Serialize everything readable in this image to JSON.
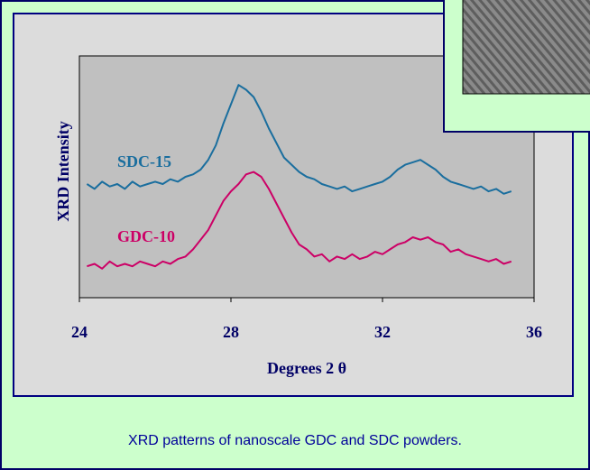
{
  "chart_data": {
    "type": "line",
    "xlabel": "Degrees 2 θ",
    "ylabel": "XRD Intensity",
    "xlim": [
      24,
      36
    ],
    "xticks": [
      24,
      28,
      32,
      36
    ],
    "ylim": [
      0,
      100
    ],
    "x": [
      24.2,
      24.4,
      24.6,
      24.8,
      25.0,
      25.2,
      25.4,
      25.6,
      25.8,
      26.0,
      26.2,
      26.4,
      26.6,
      26.8,
      27.0,
      27.2,
      27.4,
      27.6,
      27.8,
      28.0,
      28.2,
      28.4,
      28.6,
      28.8,
      29.0,
      29.2,
      29.4,
      29.6,
      29.8,
      30.0,
      30.2,
      30.4,
      30.6,
      30.8,
      31.0,
      31.2,
      31.4,
      31.6,
      31.8,
      32.0,
      32.2,
      32.4,
      32.6,
      32.8,
      33.0,
      33.2,
      33.4,
      33.6,
      33.8,
      34.0,
      34.2,
      34.4,
      34.6,
      34.8,
      35.0,
      35.2,
      35.4
    ],
    "series": [
      {
        "name": "SDC-15",
        "color": "#1a6e9e",
        "values": [
          47,
          45,
          48,
          46,
          47,
          45,
          48,
          46,
          47,
          48,
          47,
          49,
          48,
          50,
          51,
          53,
          57,
          63,
          72,
          80,
          88,
          86,
          83,
          77,
          70,
          64,
          58,
          55,
          52,
          50,
          49,
          47,
          46,
          45,
          46,
          44,
          45,
          46,
          47,
          48,
          50,
          53,
          55,
          56,
          57,
          55,
          53,
          50,
          48,
          47,
          46,
          45,
          46,
          44,
          45,
          43,
          44
        ]
      },
      {
        "name": "GDC-10",
        "color": "#cc0066",
        "values": [
          13,
          14,
          12,
          15,
          13,
          14,
          13,
          15,
          14,
          13,
          15,
          14,
          16,
          17,
          20,
          24,
          28,
          34,
          40,
          44,
          47,
          51,
          52,
          50,
          45,
          39,
          33,
          27,
          22,
          20,
          17,
          18,
          15,
          17,
          16,
          18,
          16,
          17,
          19,
          18,
          20,
          22,
          23,
          25,
          24,
          25,
          23,
          22,
          19,
          20,
          18,
          17,
          16,
          15,
          16,
          14,
          15
        ]
      }
    ]
  },
  "caption": "XRD patterns of nanoscale GDC and SDC powders."
}
